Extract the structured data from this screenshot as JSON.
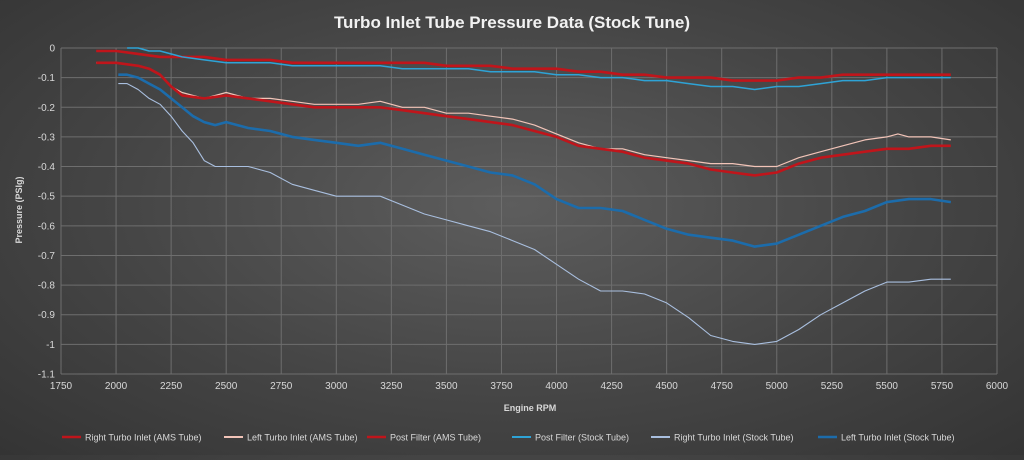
{
  "chart_data": {
    "type": "line",
    "title": "Turbo Inlet Tube Pressure Data (Stock Tune)",
    "xlabel": "Engine RPM",
    "ylabel": "Pressure (PSIg)",
    "xlim": [
      1750,
      6000
    ],
    "ylim": [
      -1.1,
      0
    ],
    "xticks": [
      1750,
      2000,
      2250,
      2500,
      2750,
      3000,
      3250,
      3500,
      3750,
      4000,
      4250,
      4500,
      4750,
      5000,
      5250,
      5500,
      5750,
      6000
    ],
    "yticks": [
      0,
      -0.1,
      -0.2,
      -0.3,
      -0.4,
      -0.5,
      -0.6,
      -0.7,
      -0.8,
      -0.9,
      -1,
      -1.1
    ],
    "grid": true,
    "legend_position": "bottom",
    "series": [
      {
        "name": "Right Turbo Inlet (AMS Tube)",
        "color": "#c0151b",
        "width": 2.6,
        "x": [
          1910,
          2000,
          2100,
          2200,
          2300,
          2400,
          2500,
          2600,
          2700,
          2800,
          2900,
          3000,
          3100,
          3200,
          3300,
          3400,
          3500,
          3600,
          3700,
          3800,
          3900,
          4000,
          4100,
          4200,
          4300,
          4400,
          4500,
          4600,
          4700,
          4800,
          4900,
          5000,
          5100,
          5200,
          5300,
          5400,
          5500,
          5600,
          5700,
          5790
        ],
        "y": [
          -0.01,
          -0.01,
          -0.02,
          -0.03,
          -0.03,
          -0.03,
          -0.04,
          -0.04,
          -0.04,
          -0.05,
          -0.05,
          -0.05,
          -0.05,
          -0.05,
          -0.05,
          -0.05,
          -0.06,
          -0.06,
          -0.06,
          -0.07,
          -0.07,
          -0.07,
          -0.08,
          -0.08,
          -0.09,
          -0.09,
          -0.1,
          -0.1,
          -0.1,
          -0.11,
          -0.11,
          -0.11,
          -0.1,
          -0.1,
          -0.09,
          -0.09,
          -0.09,
          -0.09,
          -0.09,
          -0.09
        ]
      },
      {
        "name": "Left Turbo Inlet (AMS Tube)",
        "color": "#f2c4b8",
        "width": 1.2,
        "x": [
          1910,
          2000,
          2100,
          2150,
          2200,
          2250,
          2300,
          2400,
          2500,
          2600,
          2700,
          2800,
          2900,
          3000,
          3100,
          3200,
          3300,
          3400,
          3500,
          3600,
          3700,
          3800,
          3900,
          4000,
          4100,
          4200,
          4300,
          4400,
          4500,
          4600,
          4700,
          4800,
          4900,
          5000,
          5100,
          5200,
          5300,
          5400,
          5500,
          5550,
          5600,
          5700,
          5790
        ],
        "y": [
          -0.05,
          -0.05,
          -0.06,
          -0.07,
          -0.09,
          -0.13,
          -0.15,
          -0.17,
          -0.15,
          -0.17,
          -0.17,
          -0.18,
          -0.19,
          -0.19,
          -0.19,
          -0.18,
          -0.2,
          -0.2,
          -0.22,
          -0.22,
          -0.23,
          -0.24,
          -0.26,
          -0.29,
          -0.32,
          -0.34,
          -0.34,
          -0.36,
          -0.37,
          -0.38,
          -0.39,
          -0.39,
          -0.4,
          -0.4,
          -0.37,
          -0.35,
          -0.33,
          -0.31,
          -0.3,
          -0.29,
          -0.3,
          -0.3,
          -0.31
        ]
      },
      {
        "name": "Post Filter (AMS Tube)",
        "color": "#c0151b",
        "width": 2.6,
        "x": [
          1910,
          2000,
          2100,
          2150,
          2200,
          2250,
          2300,
          2400,
          2500,
          2600,
          2700,
          2800,
          2900,
          3000,
          3100,
          3200,
          3300,
          3400,
          3500,
          3600,
          3700,
          3800,
          3900,
          4000,
          4100,
          4200,
          4300,
          4400,
          4500,
          4600,
          4700,
          4800,
          4900,
          5000,
          5100,
          5200,
          5300,
          5400,
          5500,
          5600,
          5700,
          5790
        ],
        "y": [
          -0.05,
          -0.05,
          -0.06,
          -0.07,
          -0.09,
          -0.13,
          -0.16,
          -0.17,
          -0.16,
          -0.17,
          -0.18,
          -0.19,
          -0.2,
          -0.2,
          -0.2,
          -0.2,
          -0.21,
          -0.22,
          -0.23,
          -0.24,
          -0.25,
          -0.26,
          -0.28,
          -0.3,
          -0.33,
          -0.34,
          -0.35,
          -0.37,
          -0.38,
          -0.39,
          -0.41,
          -0.42,
          -0.43,
          -0.42,
          -0.39,
          -0.37,
          -0.36,
          -0.35,
          -0.34,
          -0.34,
          -0.33,
          -0.33
        ]
      },
      {
        "name": "Post Filter (Stock Tube)",
        "color": "#2ea3d6",
        "width": 1.5,
        "x": [
          2050,
          2100,
          2150,
          2200,
          2300,
          2400,
          2500,
          2600,
          2700,
          2800,
          2900,
          3000,
          3100,
          3200,
          3300,
          3400,
          3500,
          3600,
          3700,
          3800,
          3900,
          4000,
          4100,
          4200,
          4300,
          4400,
          4500,
          4600,
          4700,
          4800,
          4900,
          5000,
          5100,
          5200,
          5300,
          5400,
          5500,
          5600,
          5700,
          5790
        ],
        "y": [
          0,
          0,
          -0.01,
          -0.01,
          -0.03,
          -0.04,
          -0.05,
          -0.05,
          -0.05,
          -0.06,
          -0.06,
          -0.06,
          -0.06,
          -0.06,
          -0.07,
          -0.07,
          -0.07,
          -0.07,
          -0.08,
          -0.08,
          -0.08,
          -0.09,
          -0.09,
          -0.1,
          -0.1,
          -0.11,
          -0.11,
          -0.12,
          -0.13,
          -0.13,
          -0.14,
          -0.13,
          -0.13,
          -0.12,
          -0.11,
          -0.11,
          -0.1,
          -0.1,
          -0.1,
          -0.1
        ]
      },
      {
        "name": "Right Turbo Inlet (Stock Tube)",
        "color": "#a9bfdf",
        "width": 1.1,
        "x": [
          2010,
          2050,
          2100,
          2150,
          2200,
          2250,
          2300,
          2350,
          2400,
          2450,
          2500,
          2600,
          2700,
          2800,
          2900,
          3000,
          3100,
          3200,
          3300,
          3400,
          3500,
          3600,
          3700,
          3800,
          3900,
          4000,
          4100,
          4200,
          4300,
          4400,
          4500,
          4600,
          4700,
          4800,
          4900,
          5000,
          5100,
          5200,
          5300,
          5400,
          5500,
          5600,
          5700,
          5790
        ],
        "y": [
          -0.12,
          -0.12,
          -0.14,
          -0.17,
          -0.19,
          -0.23,
          -0.28,
          -0.32,
          -0.38,
          -0.4,
          -0.4,
          -0.4,
          -0.42,
          -0.46,
          -0.48,
          -0.5,
          -0.5,
          -0.5,
          -0.53,
          -0.56,
          -0.58,
          -0.6,
          -0.62,
          -0.65,
          -0.68,
          -0.73,
          -0.78,
          -0.82,
          -0.82,
          -0.83,
          -0.86,
          -0.91,
          -0.97,
          -0.99,
          -1,
          -0.99,
          -0.95,
          -0.9,
          -0.86,
          -0.82,
          -0.79,
          -0.79,
          -0.78,
          -0.78
        ]
      },
      {
        "name": "Left Turbo Inlet (Stock Tube)",
        "color": "#1c6cab",
        "width": 2.6,
        "x": [
          2010,
          2050,
          2100,
          2150,
          2200,
          2250,
          2300,
          2350,
          2400,
          2450,
          2500,
          2600,
          2700,
          2800,
          2900,
          3000,
          3100,
          3200,
          3300,
          3400,
          3500,
          3600,
          3700,
          3800,
          3900,
          4000,
          4100,
          4200,
          4300,
          4400,
          4500,
          4600,
          4700,
          4800,
          4900,
          5000,
          5100,
          5200,
          5300,
          5400,
          5500,
          5600,
          5700,
          5790
        ],
        "y": [
          -0.09,
          -0.09,
          -0.1,
          -0.12,
          -0.14,
          -0.17,
          -0.2,
          -0.23,
          -0.25,
          -0.26,
          -0.25,
          -0.27,
          -0.28,
          -0.3,
          -0.31,
          -0.32,
          -0.33,
          -0.32,
          -0.34,
          -0.36,
          -0.38,
          -0.4,
          -0.42,
          -0.43,
          -0.46,
          -0.51,
          -0.54,
          -0.54,
          -0.55,
          -0.58,
          -0.61,
          -0.63,
          -0.64,
          -0.65,
          -0.67,
          -0.66,
          -0.63,
          -0.6,
          -0.57,
          -0.55,
          -0.52,
          -0.51,
          -0.51,
          -0.52
        ]
      }
    ]
  }
}
